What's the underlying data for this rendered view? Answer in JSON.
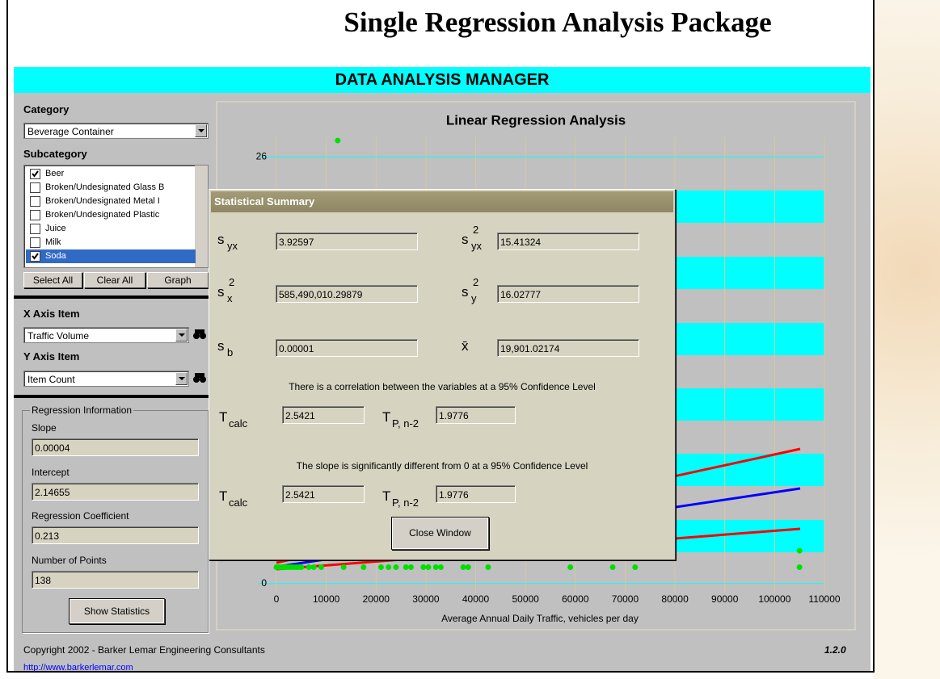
{
  "app_title": "Single Regression Analysis Package",
  "manager_title": "DATA ANALYSIS MANAGER",
  "left_panel": {
    "category_label": "Category",
    "category_value": "Beverage Container",
    "subcategory_label": "Subcategory",
    "subcategories": [
      {
        "name": "Beer",
        "checked": true
      },
      {
        "name": "Broken/Undesignated Glass B",
        "checked": false
      },
      {
        "name": "Broken/Undesignated Metal I",
        "checked": false
      },
      {
        "name": "Broken/Undesignated Plastic",
        "checked": false
      },
      {
        "name": "Juice",
        "checked": false
      },
      {
        "name": "Milk",
        "checked": false
      },
      {
        "name": "Soda",
        "checked": true
      }
    ],
    "selected": 6,
    "buttons": [
      "Select All",
      "Clear All",
      "Graph"
    ],
    "x_axis_label": "X Axis Item",
    "x_axis_value": "Traffic Volume",
    "y_axis_label": "Y Axis Item",
    "y_axis_value": "Item Count",
    "regression": {
      "title": "Regression Information",
      "fields": [
        {
          "label": "Slope",
          "value": "0.00004"
        },
        {
          "label": "Intercept",
          "value": "2.14655"
        },
        {
          "label": "Regression Coefficient",
          "value": "0.213"
        },
        {
          "label": "Number of Points",
          "value": "138"
        }
      ]
    },
    "show_statistics": "Show Statistics"
  },
  "chart_data": {
    "type": "scatter",
    "title": "Linear Regression Analysis",
    "x_label": "Average Annual Daily Traffic, vehicles per day",
    "x": [
      0,
      500,
      1000,
      1500,
      2000,
      2500,
      3000,
      3500,
      4000,
      4500,
      5000,
      6500,
      7500,
      9000,
      13500,
      17500,
      21000,
      22500,
      24000,
      26000,
      27000,
      29500,
      30500,
      32000,
      33000,
      37500,
      38500,
      42500,
      59000,
      67500,
      72000,
      105000,
      105000,
      12300
    ],
    "values": [
      1,
      1,
      1,
      1,
      1,
      1,
      1,
      1,
      1,
      1,
      1,
      1,
      1,
      1,
      1,
      1,
      1,
      1,
      1,
      1,
      1,
      1,
      1,
      1,
      1,
      1,
      1,
      1,
      1,
      1,
      1,
      1,
      2,
      27
    ],
    "color": "#00e000",
    "xlim": [
      0,
      110000
    ],
    "xticks": [
      0,
      10000,
      20000,
      30000,
      40000,
      50000,
      60000,
      70000,
      80000,
      90000,
      100000,
      110000
    ],
    "ylim": [
      -0.6,
      27.2
    ],
    "yticks": [
      0,
      26
    ],
    "grid": true
  },
  "dialog": {
    "title": "Statistical Summary",
    "stats": [
      {
        "symbol": "s",
        "sub": "yx",
        "value": "3.92597"
      },
      {
        "symbol": "s",
        "sup": "2",
        "sub": "yx",
        "value": "15.41324"
      },
      {
        "symbol": "s",
        "sup": "2",
        "sub": "x",
        "value": "585,490,010.29879"
      },
      {
        "symbol": "s",
        "sup": "2",
        "sub": "y",
        "value": "16.02777"
      },
      {
        "symbol": "s",
        "sub": "b",
        "value": "0.00001"
      },
      {
        "symbol": "x̄",
        "value": "19,901.02174"
      }
    ],
    "tests": [
      {
        "message": "There is a correlation between the variables at a 95% Confidence Level",
        "t_calc": {
          "symbol": "T",
          "sub": "calc",
          "value": "2.5421"
        },
        "t_crit": {
          "symbol": "T",
          "sub": "P, n-2",
          "value": "1.9776"
        }
      },
      {
        "message": "The slope is significantly different from 0 at a 95% Confidence Level",
        "t_calc": {
          "symbol": "T",
          "sub": "calc",
          "value": "2.5421"
        },
        "t_crit": {
          "symbol": "T",
          "sub": "P, n-2",
          "value": "1.9776"
        }
      }
    ],
    "close_button": "Close Window"
  },
  "footer": {
    "copyright": "Copyright 2002 - Barker Lemar Engineering Consultants",
    "version": "1.2.0",
    "url": "http://www.barkerlemar.com"
  }
}
